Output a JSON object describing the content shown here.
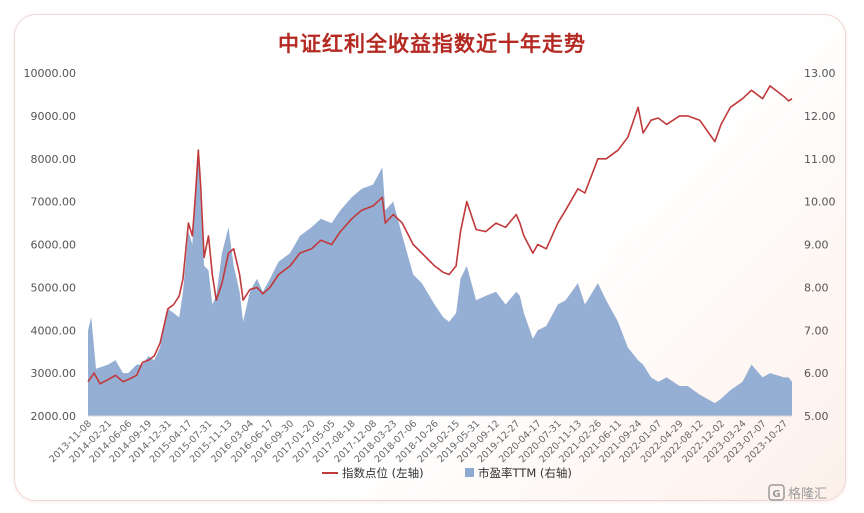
{
  "chart_data": {
    "type": "line+area",
    "title": "中证红利全收益指数近十年走势",
    "y_left": {
      "min": 2000,
      "max": 10000,
      "ticks": [
        "2000.00",
        "3000.00",
        "4000.00",
        "5000.00",
        "6000.00",
        "7000.00",
        "8000.00",
        "9000.00",
        "10000.00"
      ]
    },
    "y_right": {
      "min": 5.0,
      "max": 13.0,
      "ticks": [
        "5.00",
        "6.00",
        "7.00",
        "8.00",
        "9.00",
        "10.00",
        "11.00",
        "12.00",
        "13.00"
      ]
    },
    "x_ticks": [
      "2013-11-08",
      "2014-02-21",
      "2014-06-06",
      "2014-09-19",
      "2014-12-31",
      "2015-04-17",
      "2015-07-31",
      "2015-11-13",
      "2016-03-04",
      "2016-06-17",
      "2016-09-30",
      "2017-01-20",
      "2017-05-05",
      "2017-08-18",
      "2017-12-08",
      "2018-03-23",
      "2018-07-06",
      "2018-10-26",
      "2019-02-15",
      "2019-05-31",
      "2019-09-12",
      "2019-12-27",
      "2020-04-17",
      "2020-07-31",
      "2020-11-13",
      "2021-02-26",
      "2021-06-11",
      "2021-09-24",
      "2022-01-07",
      "2022-04-29",
      "2022-08-12",
      "2022-12-02",
      "2023-03-24",
      "2023-07-07",
      "2023-10-27"
    ],
    "x_range": [
      "2013-11-08",
      "2023-12-08"
    ],
    "series": [
      {
        "name": "指数点位 (左轴)",
        "axis": "left",
        "color": "#c0393b",
        "points": [
          [
            "2013-11-08",
            2800
          ],
          [
            "2013-12-10",
            3000
          ],
          [
            "2014-01-10",
            2750
          ],
          [
            "2014-02-21",
            2850
          ],
          [
            "2014-04-01",
            2950
          ],
          [
            "2014-05-10",
            2800
          ],
          [
            "2014-06-06",
            2850
          ],
          [
            "2014-07-20",
            2950
          ],
          [
            "2014-08-20",
            3250
          ],
          [
            "2014-09-19",
            3300
          ],
          [
            "2014-10-20",
            3400
          ],
          [
            "2014-11-20",
            3700
          ],
          [
            "2014-12-31",
            4500
          ],
          [
            "2015-01-30",
            4600
          ],
          [
            "2015-02-28",
            4800
          ],
          [
            "2015-03-20",
            5200
          ],
          [
            "2015-04-17",
            6500
          ],
          [
            "2015-05-08",
            6200
          ],
          [
            "2015-05-25",
            7200
          ],
          [
            "2015-06-08",
            8200
          ],
          [
            "2015-06-20",
            7400
          ],
          [
            "2015-07-08",
            5700
          ],
          [
            "2015-07-31",
            6200
          ],
          [
            "2015-08-20",
            5300
          ],
          [
            "2015-09-10",
            4700
          ],
          [
            "2015-10-10",
            5100
          ],
          [
            "2015-11-13",
            5800
          ],
          [
            "2015-12-10",
            5900
          ],
          [
            "2016-01-10",
            5300
          ],
          [
            "2016-01-28",
            4700
          ],
          [
            "2016-03-04",
            4950
          ],
          [
            "2016-04-10",
            5000
          ],
          [
            "2016-05-10",
            4850
          ],
          [
            "2016-06-17",
            5000
          ],
          [
            "2016-08-01",
            5300
          ],
          [
            "2016-09-30",
            5500
          ],
          [
            "2016-11-20",
            5800
          ],
          [
            "2017-01-20",
            5900
          ],
          [
            "2017-03-10",
            6100
          ],
          [
            "2017-05-05",
            6000
          ],
          [
            "2017-06-20",
            6300
          ],
          [
            "2017-08-18",
            6600
          ],
          [
            "2017-10-10",
            6800
          ],
          [
            "2017-12-08",
            6900
          ],
          [
            "2018-01-25",
            7100
          ],
          [
            "2018-02-10",
            6500
          ],
          [
            "2018-03-23",
            6700
          ],
          [
            "2018-05-10",
            6500
          ],
          [
            "2018-07-06",
            6000
          ],
          [
            "2018-08-20",
            5800
          ],
          [
            "2018-10-26",
            5500
          ],
          [
            "2018-12-10",
            5350
          ],
          [
            "2019-01-10",
            5300
          ],
          [
            "2019-02-15",
            5500
          ],
          [
            "2019-03-10",
            6300
          ],
          [
            "2019-04-12",
            7000
          ],
          [
            "2019-05-31",
            6350
          ],
          [
            "2019-07-20",
            6300
          ],
          [
            "2019-09-12",
            6500
          ],
          [
            "2019-11-01",
            6400
          ],
          [
            "2019-12-27",
            6700
          ],
          [
            "2020-01-15",
            6500
          ],
          [
            "2020-02-05",
            6200
          ],
          [
            "2020-03-23",
            5800
          ],
          [
            "2020-04-17",
            6000
          ],
          [
            "2020-06-01",
            5900
          ],
          [
            "2020-07-31",
            6500
          ],
          [
            "2020-09-10",
            6800
          ],
          [
            "2020-11-13",
            7300
          ],
          [
            "2020-12-20",
            7200
          ],
          [
            "2021-02-26",
            8000
          ],
          [
            "2021-04-10",
            8000
          ],
          [
            "2021-06-11",
            8200
          ],
          [
            "2021-08-01",
            8500
          ],
          [
            "2021-09-24",
            9200
          ],
          [
            "2021-10-20",
            8600
          ],
          [
            "2021-12-01",
            8900
          ],
          [
            "2022-01-07",
            8950
          ],
          [
            "2022-02-20",
            8800
          ],
          [
            "2022-04-29",
            9000
          ],
          [
            "2022-06-10",
            9000
          ],
          [
            "2022-08-12",
            8900
          ],
          [
            "2022-10-31",
            8400
          ],
          [
            "2022-12-02",
            8800
          ],
          [
            "2023-01-20",
            9200
          ],
          [
            "2023-03-24",
            9400
          ],
          [
            "2023-05-10",
            9600
          ],
          [
            "2023-07-07",
            9400
          ],
          [
            "2023-08-15",
            9700
          ],
          [
            "2023-10-27",
            9450
          ],
          [
            "2023-11-20",
            9350
          ],
          [
            "2023-12-08",
            9400
          ]
        ]
      },
      {
        "name": "市盈率TTM (右轴)",
        "axis": "right",
        "color": "#8faad1",
        "points": [
          [
            "2013-11-08",
            7.0
          ],
          [
            "2013-11-25",
            7.3
          ],
          [
            "2013-12-20",
            6.1
          ],
          [
            "2014-02-21",
            6.2
          ],
          [
            "2014-04-01",
            6.3
          ],
          [
            "2014-05-10",
            6.0
          ],
          [
            "2014-06-06",
            6.0
          ],
          [
            "2014-07-20",
            6.2
          ],
          [
            "2014-08-20",
            6.2
          ],
          [
            "2014-09-19",
            6.4
          ],
          [
            "2014-10-20",
            6.3
          ],
          [
            "2014-11-20",
            6.6
          ],
          [
            "2014-12-31",
            7.5
          ],
          [
            "2015-01-30",
            7.4
          ],
          [
            "2015-02-28",
            7.3
          ],
          [
            "2015-03-20",
            7.9
          ],
          [
            "2015-04-17",
            9.3
          ],
          [
            "2015-05-08",
            9.0
          ],
          [
            "2015-05-25",
            10.5
          ],
          [
            "2015-06-08",
            11.2
          ],
          [
            "2015-06-20",
            10.0
          ],
          [
            "2015-07-08",
            8.5
          ],
          [
            "2015-07-31",
            8.4
          ],
          [
            "2015-08-20",
            7.6
          ],
          [
            "2015-09-10",
            7.8
          ],
          [
            "2015-10-10",
            8.8
          ],
          [
            "2015-11-13",
            9.4
          ],
          [
            "2015-12-10",
            8.5
          ],
          [
            "2016-01-10",
            7.9
          ],
          [
            "2016-01-28",
            7.2
          ],
          [
            "2016-03-04",
            7.9
          ],
          [
            "2016-04-10",
            8.2
          ],
          [
            "2016-05-10",
            7.9
          ],
          [
            "2016-06-17",
            8.2
          ],
          [
            "2016-08-01",
            8.6
          ],
          [
            "2016-09-30",
            8.8
          ],
          [
            "2016-11-20",
            9.2
          ],
          [
            "2017-01-20",
            9.4
          ],
          [
            "2017-03-10",
            9.6
          ],
          [
            "2017-05-05",
            9.5
          ],
          [
            "2017-06-20",
            9.8
          ],
          [
            "2017-08-18",
            10.1
          ],
          [
            "2017-10-10",
            10.3
          ],
          [
            "2017-12-08",
            10.4
          ],
          [
            "2018-01-25",
            10.8
          ],
          [
            "2018-02-10",
            9.8
          ],
          [
            "2018-03-23",
            10.0
          ],
          [
            "2018-05-10",
            9.2
          ],
          [
            "2018-07-06",
            8.3
          ],
          [
            "2018-08-20",
            8.1
          ],
          [
            "2018-10-26",
            7.6
          ],
          [
            "2018-12-10",
            7.3
          ],
          [
            "2019-01-10",
            7.2
          ],
          [
            "2019-02-15",
            7.4
          ],
          [
            "2019-03-10",
            8.2
          ],
          [
            "2019-04-12",
            8.5
          ],
          [
            "2019-05-31",
            7.7
          ],
          [
            "2019-07-20",
            7.8
          ],
          [
            "2019-09-12",
            7.9
          ],
          [
            "2019-11-01",
            7.6
          ],
          [
            "2019-12-27",
            7.9
          ],
          [
            "2020-01-15",
            7.8
          ],
          [
            "2020-02-05",
            7.4
          ],
          [
            "2020-03-23",
            6.8
          ],
          [
            "2020-04-17",
            7.0
          ],
          [
            "2020-06-01",
            7.1
          ],
          [
            "2020-07-31",
            7.6
          ],
          [
            "2020-09-10",
            7.7
          ],
          [
            "2020-11-13",
            8.1
          ],
          [
            "2020-12-20",
            7.6
          ],
          [
            "2021-02-26",
            8.1
          ],
          [
            "2021-04-10",
            7.7
          ],
          [
            "2021-06-11",
            7.2
          ],
          [
            "2021-08-01",
            6.6
          ],
          [
            "2021-09-24",
            6.3
          ],
          [
            "2021-10-20",
            6.2
          ],
          [
            "2021-12-01",
            5.9
          ],
          [
            "2022-01-07",
            5.8
          ],
          [
            "2022-02-20",
            5.9
          ],
          [
            "2022-04-29",
            5.7
          ],
          [
            "2022-06-10",
            5.7
          ],
          [
            "2022-08-12",
            5.5
          ],
          [
            "2022-10-31",
            5.3
          ],
          [
            "2022-12-02",
            5.4
          ],
          [
            "2023-01-20",
            5.6
          ],
          [
            "2023-03-24",
            5.8
          ],
          [
            "2023-05-10",
            6.2
          ],
          [
            "2023-07-07",
            5.9
          ],
          [
            "2023-08-15",
            6.0
          ],
          [
            "2023-10-27",
            5.9
          ],
          [
            "2023-11-20",
            5.9
          ],
          [
            "2023-12-08",
            5.8
          ]
        ]
      }
    ],
    "legend_position": "bottom",
    "watermark": "格隆汇"
  }
}
